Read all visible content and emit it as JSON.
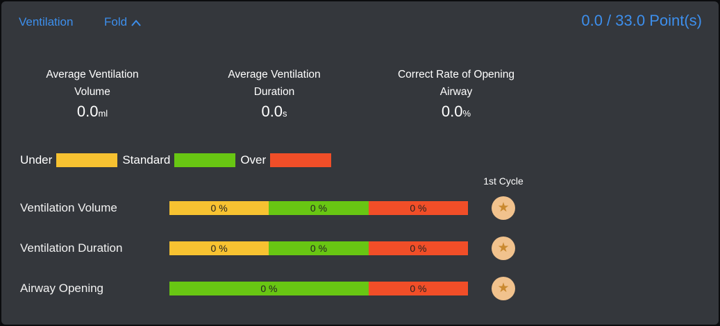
{
  "theme": {
    "background": "#34373c",
    "panel_border": "#0b0c0e",
    "accent_blue": "#3d8fed",
    "under_color": "#f7c231",
    "standard_color": "#68c613",
    "over_color": "#f14e28",
    "bar_text_color": "#222222",
    "star_circle_color": "#f1c28d",
    "star_color": "#c9892f"
  },
  "header": {
    "title": "Ventilation",
    "fold_label": "Fold",
    "score": "0.0 / 33.0 Point(s)"
  },
  "stats": [
    {
      "label_line1": "Average Ventilation",
      "label_line2": "Volume",
      "value": "0.0",
      "unit": "ml"
    },
    {
      "label_line1": "Average Ventilation",
      "label_line2": "Duration",
      "value": "0.0",
      "unit": "s"
    },
    {
      "label_line1": "Correct Rate of Opening",
      "label_line2": "Airway",
      "value": "0.0",
      "unit": "%"
    }
  ],
  "legend": {
    "items": [
      {
        "label": "Under",
        "color": "#f7c231"
      },
      {
        "label": "Standard",
        "color": "#68c613"
      },
      {
        "label": "Over",
        "color": "#f14e28"
      }
    ]
  },
  "cycle": {
    "header": "1st Cycle",
    "star_glyph": "★"
  },
  "rows": [
    {
      "label": "Ventilation Volume",
      "segments": [
        {
          "name": "under",
          "color": "#f7c231",
          "width_pct": 33.3,
          "text": "0 %"
        },
        {
          "name": "standard",
          "color": "#68c613",
          "width_pct": 33.4,
          "text": "0 %"
        },
        {
          "name": "over",
          "color": "#f14e28",
          "width_pct": 33.3,
          "text": "0 %"
        }
      ]
    },
    {
      "label": "Ventilation Duration",
      "segments": [
        {
          "name": "under",
          "color": "#f7c231",
          "width_pct": 33.3,
          "text": "0 %"
        },
        {
          "name": "standard",
          "color": "#68c613",
          "width_pct": 33.4,
          "text": "0 %"
        },
        {
          "name": "over",
          "color": "#f14e28",
          "width_pct": 33.3,
          "text": "0 %"
        }
      ]
    },
    {
      "label": "Airway Opening",
      "segments": [
        {
          "name": "standard",
          "color": "#68c613",
          "width_pct": 66.7,
          "text": "0 %"
        },
        {
          "name": "over",
          "color": "#f14e28",
          "width_pct": 33.3,
          "text": "0 %"
        }
      ]
    }
  ]
}
